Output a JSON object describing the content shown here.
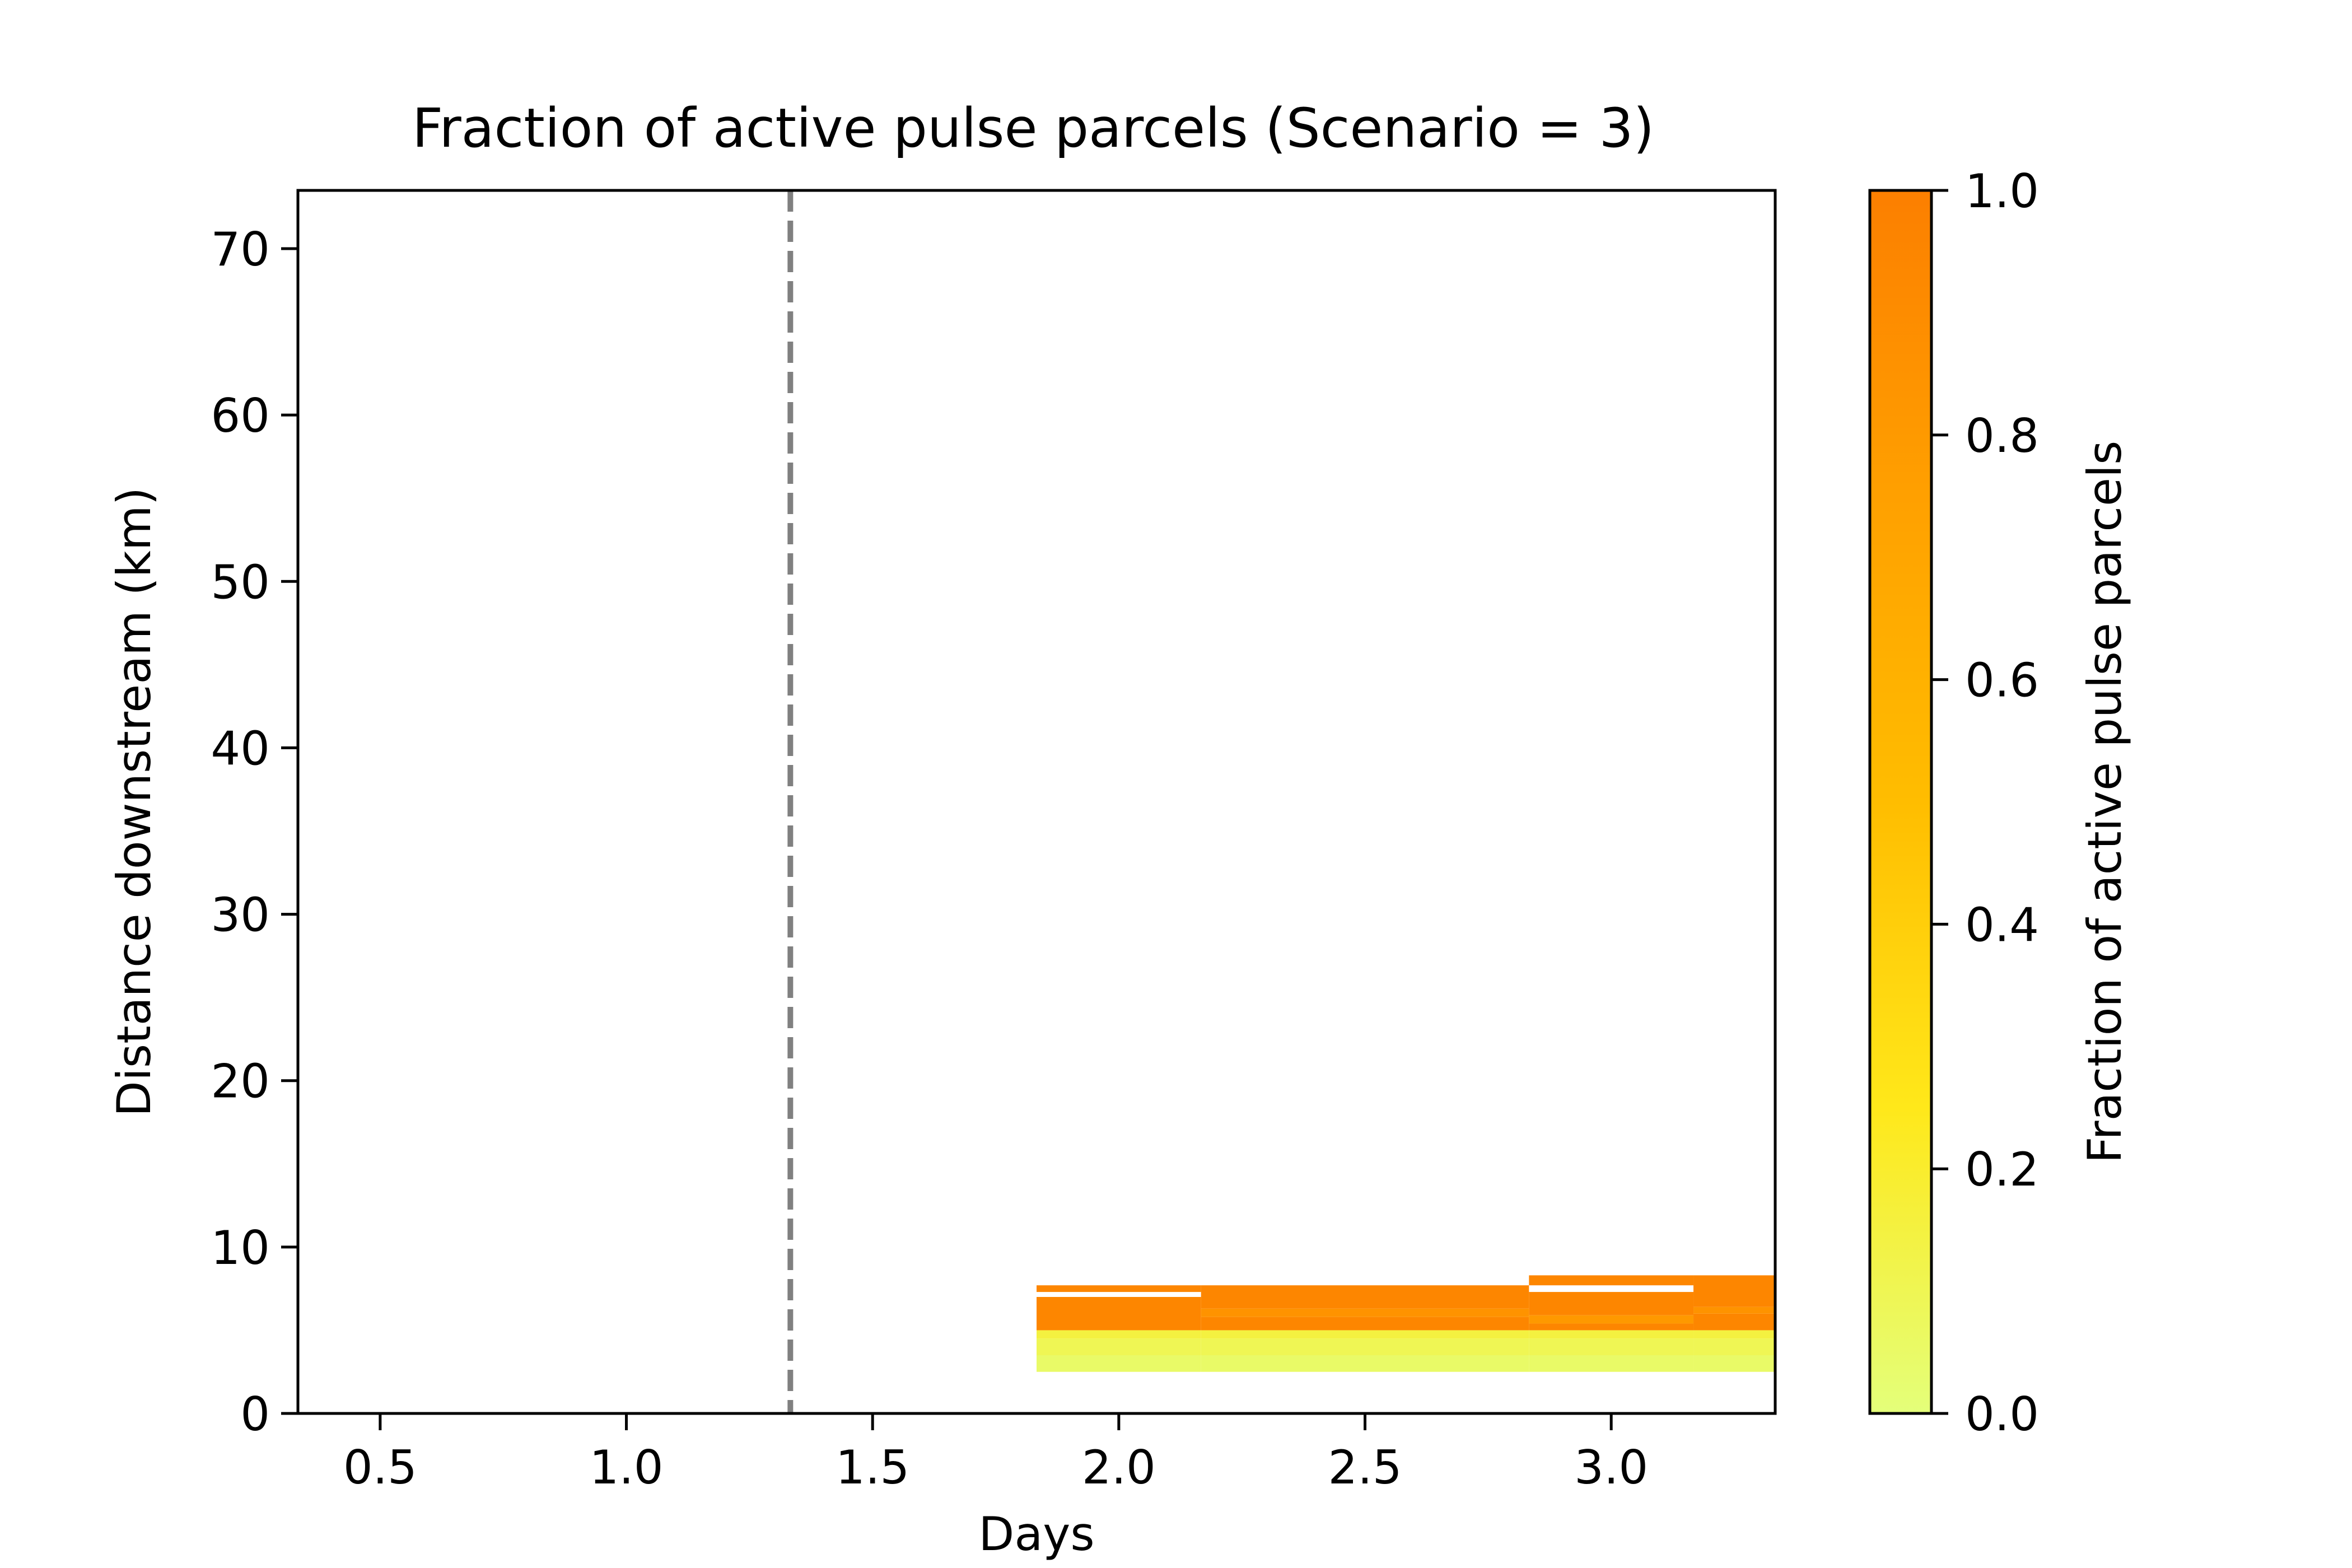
{
  "chart_data": {
    "type": "heatmap",
    "title": "Fraction of active pulse parcels (Scenario = 3)",
    "xlabel": "Days",
    "ylabel": "Distance downstream (km)",
    "xlim": [
      0.333,
      3.333
    ],
    "ylim": [
      0,
      73.5
    ],
    "xticks": [
      0.5,
      1.0,
      1.5,
      2.0,
      2.5,
      3.0
    ],
    "xtick_labels": [
      "0.5",
      "1.0",
      "1.5",
      "2.0",
      "2.5",
      "3.0"
    ],
    "yticks": [
      0,
      10,
      20,
      30,
      40,
      50,
      60,
      70
    ],
    "ytick_labels": [
      "0",
      "10",
      "20",
      "30",
      "40",
      "50",
      "60",
      "70"
    ],
    "grid": false,
    "reference_line": {
      "x": 1.333,
      "style": "dashed",
      "color": "#808080"
    },
    "colorbar": {
      "label": "Fraction of active pulse parcels",
      "range": [
        0.0,
        1.0
      ],
      "ticks": [
        0.0,
        0.2,
        0.4,
        0.6,
        0.8,
        1.0
      ],
      "tick_labels": [
        "0.0",
        "0.2",
        "0.4",
        "0.6",
        "0.8",
        "1.0"
      ],
      "colormap": "Wistia"
    },
    "cells": [
      {
        "x0": 1.833,
        "x1": 2.167,
        "y0": 2.5,
        "y1": 3.5,
        "value": 0.05
      },
      {
        "x0": 1.833,
        "x1": 2.167,
        "y0": 3.5,
        "y1": 4.5,
        "value": 0.1
      },
      {
        "x0": 1.833,
        "x1": 2.167,
        "y0": 4.5,
        "y1": 5.0,
        "value": 0.15
      },
      {
        "x0": 1.833,
        "x1": 2.167,
        "y0": 5.0,
        "y1": 7.0,
        "value": 0.95
      },
      {
        "x0": 1.833,
        "x1": 2.167,
        "y0": 7.3,
        "y1": 7.7,
        "value": 0.95
      },
      {
        "x0": 2.167,
        "x1": 2.833,
        "y0": 2.5,
        "y1": 3.5,
        "value": 0.05
      },
      {
        "x0": 2.167,
        "x1": 2.833,
        "y0": 3.5,
        "y1": 4.5,
        "value": 0.1
      },
      {
        "x0": 2.167,
        "x1": 2.833,
        "y0": 4.5,
        "y1": 5.0,
        "value": 0.15
      },
      {
        "x0": 2.167,
        "x1": 2.833,
        "y0": 5.0,
        "y1": 5.8,
        "value": 0.95
      },
      {
        "x0": 2.167,
        "x1": 2.833,
        "y0": 5.8,
        "y1": 6.3,
        "value": 0.85
      },
      {
        "x0": 2.167,
        "x1": 2.833,
        "y0": 6.3,
        "y1": 7.7,
        "value": 0.95
      },
      {
        "x0": 2.833,
        "x1": 3.167,
        "y0": 2.5,
        "y1": 3.5,
        "value": 0.05
      },
      {
        "x0": 2.833,
        "x1": 3.167,
        "y0": 3.5,
        "y1": 4.5,
        "value": 0.1
      },
      {
        "x0": 2.833,
        "x1": 3.167,
        "y0": 4.5,
        "y1": 5.0,
        "value": 0.15
      },
      {
        "x0": 2.833,
        "x1": 3.167,
        "y0": 5.0,
        "y1": 5.4,
        "value": 0.95
      },
      {
        "x0": 2.833,
        "x1": 3.167,
        "y0": 5.4,
        "y1": 5.9,
        "value": 0.8
      },
      {
        "x0": 2.833,
        "x1": 3.167,
        "y0": 5.9,
        "y1": 7.3,
        "value": 0.95
      },
      {
        "x0": 2.833,
        "x1": 3.167,
        "y0": 7.7,
        "y1": 8.3,
        "value": 0.95
      },
      {
        "x0": 3.167,
        "x1": 3.333,
        "y0": 2.5,
        "y1": 3.5,
        "value": 0.05
      },
      {
        "x0": 3.167,
        "x1": 3.333,
        "y0": 3.5,
        "y1": 4.5,
        "value": 0.1
      },
      {
        "x0": 3.167,
        "x1": 3.333,
        "y0": 4.5,
        "y1": 5.0,
        "value": 0.15
      },
      {
        "x0": 3.167,
        "x1": 3.333,
        "y0": 5.0,
        "y1": 6.0,
        "value": 0.95
      },
      {
        "x0": 3.167,
        "x1": 3.333,
        "y0": 6.0,
        "y1": 6.4,
        "value": 0.85
      },
      {
        "x0": 3.167,
        "x1": 3.333,
        "y0": 6.4,
        "y1": 8.3,
        "value": 0.95
      }
    ]
  }
}
